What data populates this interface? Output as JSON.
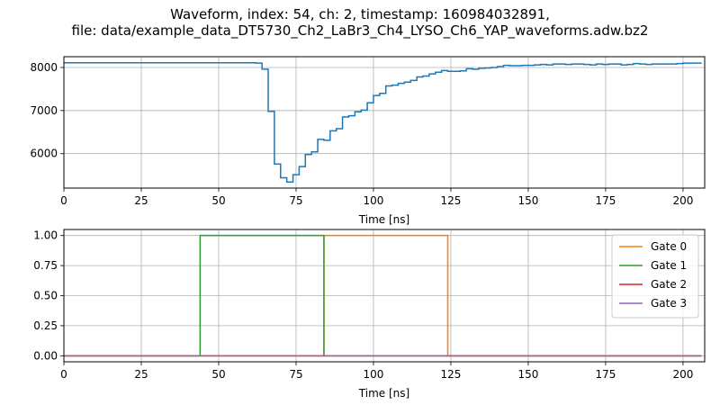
{
  "chart_data": [
    {
      "type": "line",
      "drawstyle": "steps",
      "title_lines": [
        "Waveform, index: 54, ch: 2, timestamp: 160984032891,",
        "file: data/example_data_DT5730_Ch2_LaBr3_Ch4_LYSO_Ch6_YAP_waveforms.adw.bz2"
      ],
      "xlabel": "Time [ns]",
      "ylabel": "",
      "xlim": [
        0,
        207
      ],
      "ylim": [
        5200,
        8250
      ],
      "xticks": [
        0,
        25,
        50,
        75,
        100,
        125,
        150,
        175,
        200
      ],
      "yticks": [
        6000,
        7000,
        8000
      ],
      "grid": true,
      "series": [
        {
          "color": "#1f77b4",
          "x": [
            0,
            62,
            64,
            66,
            68,
            70,
            72,
            74,
            76,
            78,
            80,
            82,
            84,
            86,
            88,
            90,
            92,
            94,
            96,
            98,
            100,
            102,
            104,
            106,
            108,
            110,
            112,
            114,
            116,
            118,
            120,
            122,
            124,
            126,
            128,
            130,
            132,
            134,
            136,
            138,
            140,
            142,
            144,
            146,
            148,
            150,
            152,
            154,
            156,
            158,
            160,
            162,
            164,
            166,
            168,
            170,
            172,
            174,
            176,
            178,
            180,
            182,
            184,
            186,
            188,
            190,
            192,
            194,
            196,
            198,
            200,
            202,
            204,
            206
          ],
          "y": [
            8110,
            8100,
            7960,
            6980,
            5760,
            5440,
            5340,
            5510,
            5700,
            5980,
            6040,
            6330,
            6310,
            6530,
            6580,
            6850,
            6880,
            6970,
            7010,
            7180,
            7350,
            7400,
            7570,
            7590,
            7630,
            7660,
            7700,
            7780,
            7800,
            7850,
            7890,
            7930,
            7910,
            7910,
            7920,
            7970,
            7960,
            7980,
            7990,
            8000,
            8020,
            8050,
            8040,
            8040,
            8050,
            8050,
            8060,
            8070,
            8060,
            8080,
            8080,
            8070,
            8080,
            8080,
            8070,
            8060,
            8080,
            8070,
            8080,
            8080,
            8060,
            8070,
            8090,
            8080,
            8070,
            8080,
            8080,
            8080,
            8080,
            8090,
            8100,
            8100,
            8100,
            8100
          ]
        }
      ]
    },
    {
      "type": "line",
      "xlabel": "Time [ns]",
      "ylabel": "",
      "xlim": [
        0,
        207
      ],
      "ylim": [
        -0.05,
        1.05
      ],
      "xticks": [
        0,
        25,
        50,
        75,
        100,
        125,
        150,
        175,
        200
      ],
      "yticks": [
        0.0,
        0.25,
        0.5,
        0.75,
        1.0
      ],
      "ytick_labels": [
        "0.00",
        "0.25",
        "0.50",
        "0.75",
        "1.00"
      ],
      "grid": true,
      "legend": "top-right",
      "series": [
        {
          "name": "Gate 0",
          "color": "#ff7f0e",
          "x": [
            0,
            84,
            84,
            124,
            124,
            206
          ],
          "y": [
            0,
            0,
            1,
            1,
            0,
            0
          ]
        },
        {
          "name": "Gate 1",
          "color": "#2ca02c",
          "x": [
            0,
            44,
            44,
            84,
            84,
            206
          ],
          "y": [
            0,
            0,
            1,
            1,
            0,
            0
          ]
        },
        {
          "name": "Gate 2",
          "color": "#d62728",
          "x": [
            0,
            206
          ],
          "y": [
            0,
            0
          ]
        },
        {
          "name": "Gate 3",
          "color": "#9467bd",
          "x": [
            0,
            206
          ],
          "y": [
            0,
            0
          ]
        }
      ]
    }
  ]
}
